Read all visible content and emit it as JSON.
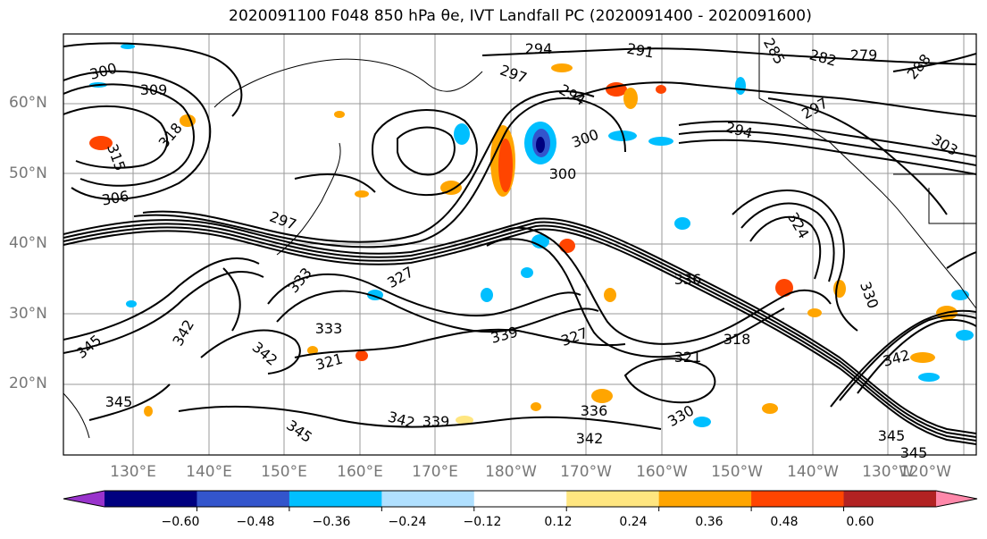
{
  "title": "2020091100 F048 850 hPa θe, IVT Landfall PC (2020091400 - 2020091600)",
  "lat_labels": [
    "60°N",
    "50°N",
    "40°N",
    "30°N",
    "20°N"
  ],
  "lon_labels": [
    "130°E",
    "140°E",
    "150°E",
    "160°E",
    "170°E",
    "180°W",
    "170°W",
    "160°W",
    "150°W",
    "140°W",
    "130°W",
    "120°W"
  ],
  "contour_labels": [
    {
      "text": "300"
    },
    {
      "text": "309"
    },
    {
      "text": "315"
    },
    {
      "text": "318"
    },
    {
      "text": "306"
    },
    {
      "text": "297"
    },
    {
      "text": "294"
    },
    {
      "text": "291"
    },
    {
      "text": "285"
    },
    {
      "text": "282"
    },
    {
      "text": "279"
    },
    {
      "text": "288"
    },
    {
      "text": "297"
    },
    {
      "text": "294"
    },
    {
      "text": "300"
    },
    {
      "text": "300"
    },
    {
      "text": "294"
    },
    {
      "text": "297"
    },
    {
      "text": "303"
    },
    {
      "text": "324"
    },
    {
      "text": "336"
    },
    {
      "text": "330"
    },
    {
      "text": "339"
    },
    {
      "text": "333"
    },
    {
      "text": "327"
    },
    {
      "text": "321"
    },
    {
      "text": "318"
    },
    {
      "text": "342"
    },
    {
      "text": "345"
    },
    {
      "text": "342"
    },
    {
      "text": "339"
    },
    {
      "text": "336"
    },
    {
      "text": "342"
    },
    {
      "text": "345"
    },
    {
      "text": "342"
    },
    {
      "text": "345"
    },
    {
      "text": "345"
    },
    {
      "text": "342"
    },
    {
      "text": "345"
    },
    {
      "text": "333"
    },
    {
      "text": "327"
    },
    {
      "text": "321"
    },
    {
      "text": "330"
    }
  ],
  "colorbar": {
    "ticks": [
      "−0.60",
      "−0.48",
      "−0.36",
      "−0.24",
      "−0.12",
      "0.12",
      "0.24",
      "0.36",
      "0.48",
      "0.60"
    ],
    "colors": [
      "#9933cc",
      "#000080",
      "#3355cc",
      "#00bfff",
      "#b0e0ff",
      "#ffffff",
      "#ffe680",
      "#ffa500",
      "#ff4500",
      "#b22222",
      "#ff88aa"
    ]
  }
}
